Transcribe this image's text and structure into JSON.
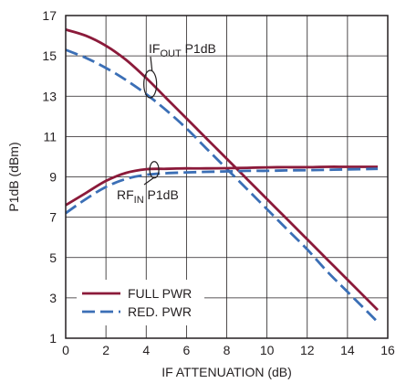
{
  "chart_data": {
    "type": "line",
    "xlabel": "IF ATTENUATION (dB)",
    "ylabel": "P1dB (dBm)",
    "xlim": [
      0,
      16
    ],
    "ylim": [
      1,
      17
    ],
    "x_ticks": [
      "0",
      "2",
      "4",
      "6",
      "8",
      "10",
      "12",
      "14",
      "16"
    ],
    "y_ticks": [
      "1",
      "3",
      "5",
      "7",
      "9",
      "11",
      "13",
      "15",
      "17"
    ],
    "grid": true,
    "legend_position": "bottom-left",
    "series": [
      {
        "name": "FULL PWR",
        "group": "IFOUT P1dB",
        "color": "#8b1a3a",
        "dash": "solid",
        "x": [
          0,
          1,
          2,
          3,
          4,
          5,
          6,
          7,
          8,
          9,
          10,
          11,
          12,
          13,
          14,
          15.5
        ],
        "y": [
          16.3,
          16.0,
          15.5,
          14.8,
          13.9,
          12.9,
          11.9,
          10.9,
          9.9,
          8.9,
          7.9,
          6.9,
          5.9,
          4.9,
          3.9,
          2.4
        ]
      },
      {
        "name": "RED. PWR",
        "group": "IFOUT P1dB",
        "color": "#3b6fb6",
        "dash": "dashed",
        "x": [
          0,
          1,
          2,
          3,
          4,
          5,
          6,
          7,
          8,
          9,
          10,
          11,
          12,
          13,
          14,
          15.5
        ],
        "y": [
          15.3,
          14.9,
          14.4,
          13.8,
          13.1,
          12.3,
          11.4,
          10.4,
          9.4,
          8.4,
          7.4,
          6.4,
          5.4,
          4.3,
          3.3,
          1.8
        ]
      },
      {
        "name": "FULL PWR",
        "group": "RFIN P1dB",
        "color": "#8b1a3a",
        "dash": "solid",
        "x": [
          0,
          1,
          2,
          3,
          4,
          5,
          6,
          7,
          8,
          9,
          10,
          11,
          12,
          13,
          14,
          15.5
        ],
        "y": [
          7.6,
          8.2,
          8.8,
          9.2,
          9.38,
          9.4,
          9.42,
          9.42,
          9.43,
          9.45,
          9.47,
          9.48,
          9.48,
          9.5,
          9.5,
          9.5
        ]
      },
      {
        "name": "RED. PWR",
        "group": "RFIN P1dB",
        "color": "#3b6fb6",
        "dash": "dashed",
        "x": [
          0,
          1,
          2,
          3,
          4,
          5,
          6,
          7,
          8,
          9,
          10,
          11,
          12,
          13,
          14,
          15.5
        ],
        "y": [
          7.2,
          7.9,
          8.5,
          8.9,
          9.1,
          9.18,
          9.22,
          9.25,
          9.27,
          9.3,
          9.3,
          9.32,
          9.33,
          9.35,
          9.37,
          9.4
        ]
      }
    ],
    "annotations": [
      {
        "base": "IF",
        "sub": "OUT",
        "suffix": " P1dB",
        "x": 4.2,
        "y": 13.6
      },
      {
        "base": "RF",
        "sub": "IN",
        "suffix": " P1dB",
        "x": 4.4,
        "y": 9.35
      }
    ],
    "legend": [
      {
        "label": "FULL PWR",
        "color": "#8b1a3a",
        "dash": "solid"
      },
      {
        "label": "RED. PWR",
        "color": "#3b6fb6",
        "dash": "dashed"
      }
    ]
  }
}
